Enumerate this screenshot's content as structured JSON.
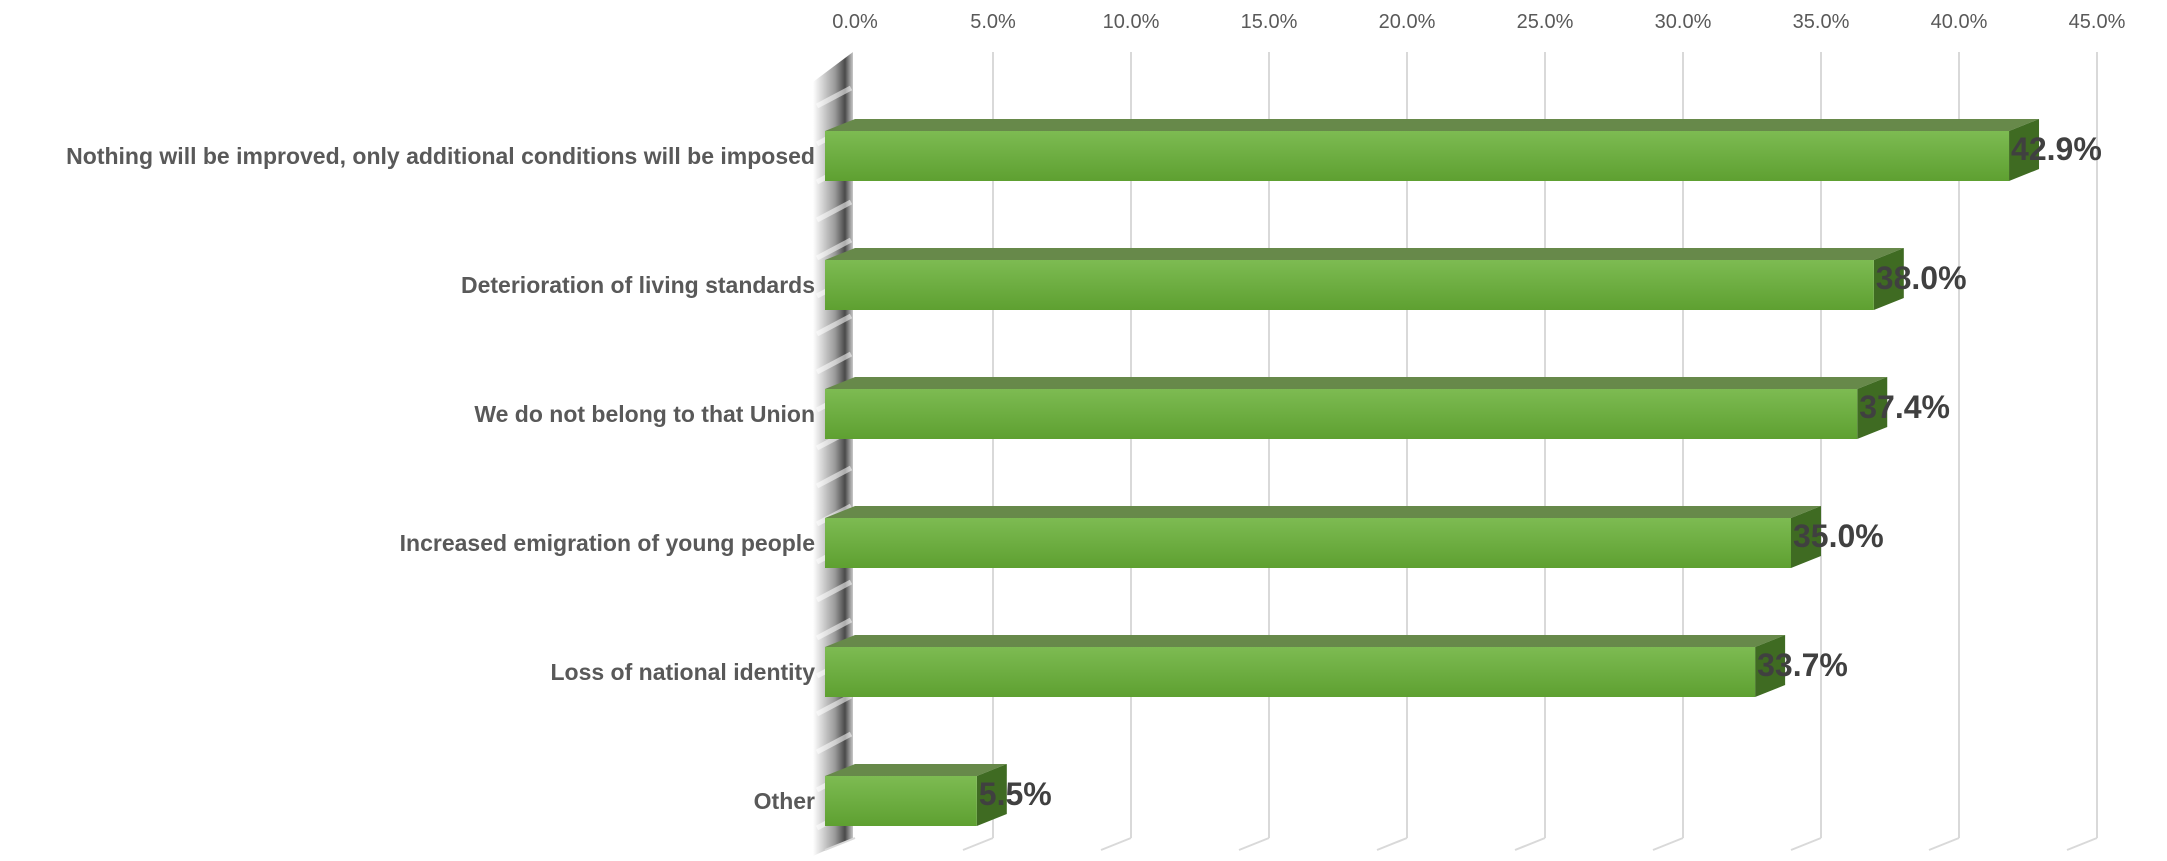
{
  "chart_data": {
    "type": "bar",
    "orientation": "horizontal",
    "three_d": true,
    "title": "",
    "xlabel": "",
    "ylabel": "",
    "categories": [
      "Nothing will be improved, only additional conditions will be imposed",
      "Deterioration of living standards",
      "We do not belong to that Union",
      "Increased emigration of young people",
      "Loss of national identity",
      "Other"
    ],
    "values": [
      42.9,
      38.0,
      37.4,
      35.0,
      33.7,
      5.5
    ],
    "value_labels": [
      "42.9%",
      "38.0%",
      "37.4%",
      "35.0%",
      "33.7%",
      "5.5%"
    ],
    "xlim": [
      0,
      45
    ],
    "ticks": [
      0,
      5,
      10,
      15,
      20,
      25,
      30,
      35,
      40,
      45
    ],
    "tick_labels": [
      "0.0%",
      "5.0%",
      "10.0%",
      "15.0%",
      "20.0%",
      "25.0%",
      "30.0%",
      "35.0%",
      "40.0%",
      "45.0%"
    ],
    "axis_position": "top",
    "grid": true,
    "legend": "none",
    "colors": {
      "bar_front_top": "#7dbb52",
      "bar_front_bottom": "#5ea031",
      "bar_top_face": "#67894a",
      "bar_side_face": "#3f6b22",
      "grid": "#d9d9d9",
      "wall": "#707070",
      "tick_text": "#595959",
      "category_text": "#595959",
      "value_text": "#404040"
    }
  }
}
